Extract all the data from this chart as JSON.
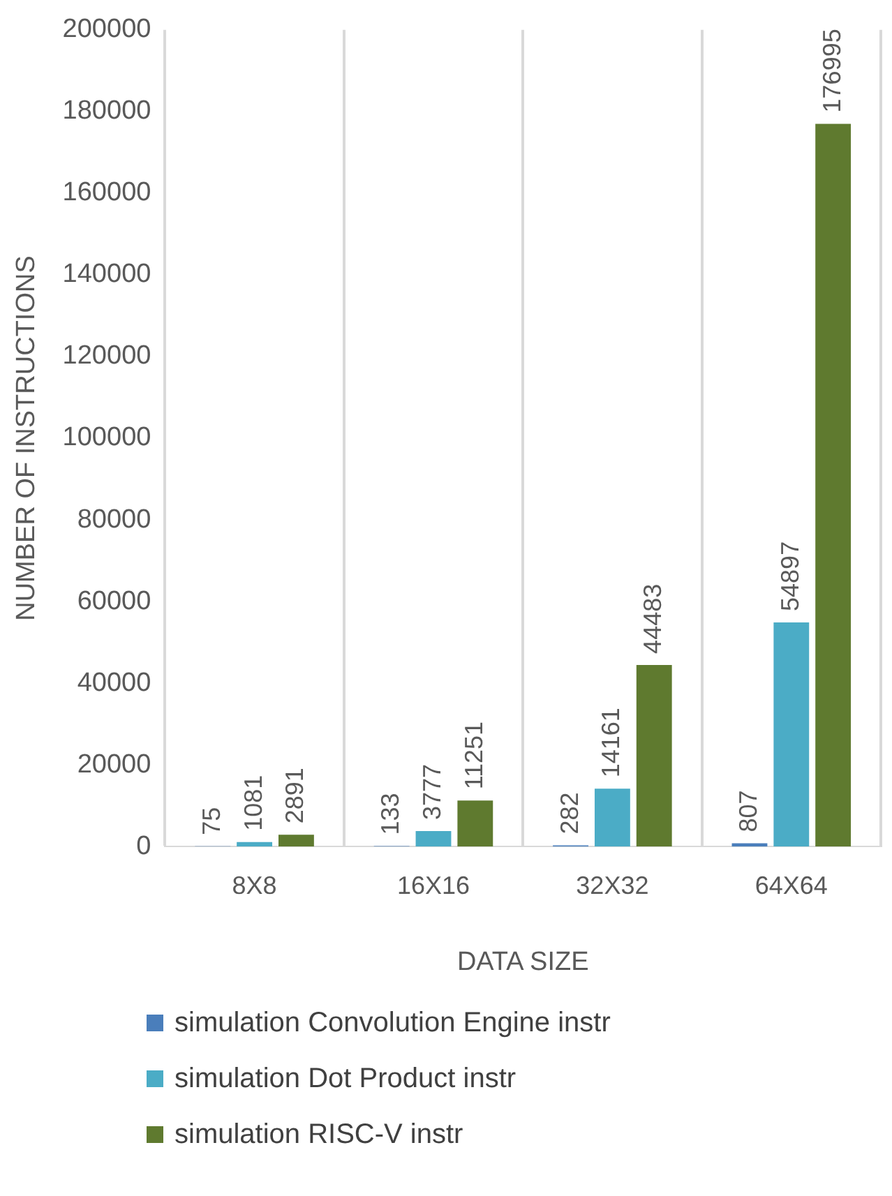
{
  "chart_data": {
    "type": "bar",
    "xlabel": "DATA SIZE",
    "ylabel": "NUMBER OF INSTRUCTIONS",
    "categories": [
      "8X8",
      "16X16",
      "32X32",
      "64X64"
    ],
    "series": [
      {
        "name": "simulation Convolution Engine instr",
        "color": "#4a7ebb",
        "values": [
          75,
          133,
          282,
          807
        ]
      },
      {
        "name": "simulation Dot Product instr",
        "color": "#4bacc6",
        "values": [
          1081,
          3777,
          14161,
          54897
        ]
      },
      {
        "name": "simulation RISC-V instr",
        "color": "#5f7a2f",
        "values": [
          2891,
          11251,
          44483,
          176995
        ]
      }
    ],
    "ylim": [
      0,
      200000
    ],
    "yticks": [
      0,
      20000,
      40000,
      60000,
      80000,
      100000,
      120000,
      140000,
      160000,
      180000,
      200000
    ],
    "grid": "x",
    "legend": "bottom",
    "data_labels": true
  }
}
